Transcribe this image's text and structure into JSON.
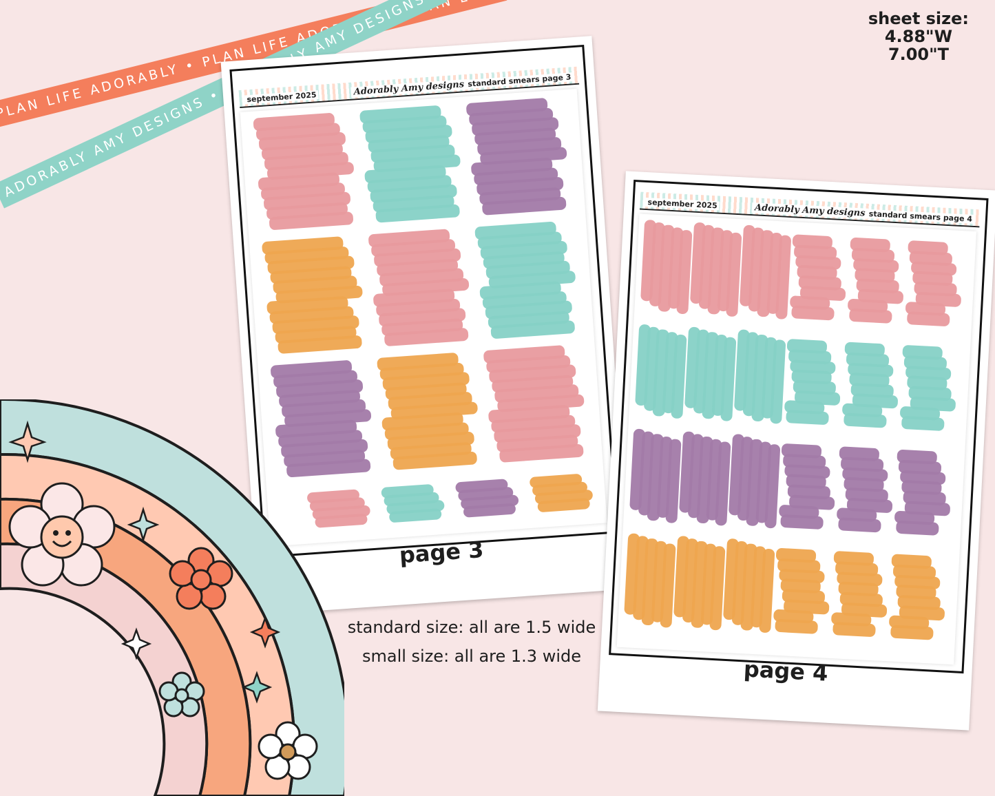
{
  "ribbons": {
    "orange_text": "PLAN LIFE ADORABLY • PLAN LIFE ADORABLY • PLAN LIFE ADORABLY",
    "teal_text": "ADORABLY AMY DESIGNS • ADORABLY AMY DESIGNS • ADORABLY AMY"
  },
  "sheet_size": {
    "label": "sheet size:",
    "width": "4.88\"W",
    "height": "7.00\"T"
  },
  "sheets": [
    {
      "header_left": "september 2025",
      "header_logo": "Adorably Amy designs",
      "header_right": "standard smears page 3",
      "page_label": "page 3"
    },
    {
      "header_left": "september 2025",
      "header_logo": "Adorably Amy designs",
      "header_right": "standard smears page 4",
      "page_label": "page 4"
    }
  ],
  "sizes": {
    "standard": "standard size: all are 1.5 wide",
    "small": "small size: all are 1.3 wide"
  },
  "colors": {
    "pink": "#e89a9e",
    "teal": "#86d1c6",
    "purple": "#a27aa8",
    "orange": "#eea54f",
    "background": "#f8e6e6"
  },
  "icons": [
    "flower-smiley-icon",
    "sparkle-icon",
    "flower-icon",
    "rainbow-icon"
  ]
}
